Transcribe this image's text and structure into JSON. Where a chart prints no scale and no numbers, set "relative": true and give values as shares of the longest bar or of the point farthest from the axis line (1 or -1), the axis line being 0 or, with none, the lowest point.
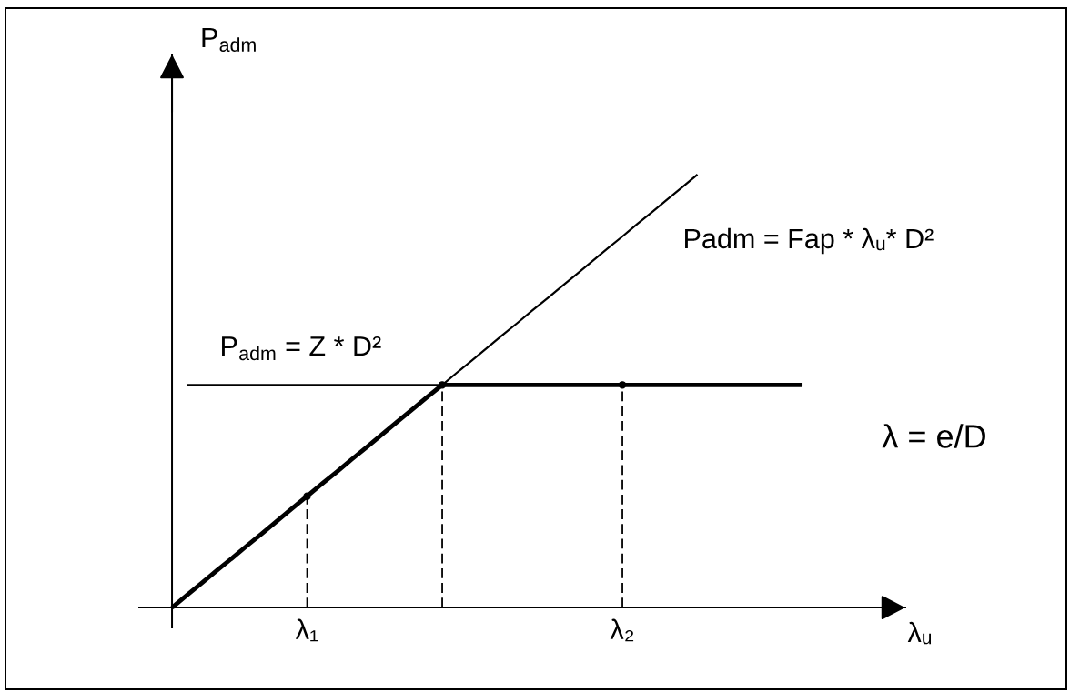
{
  "chart_data": {
    "type": "line",
    "relative": true,
    "xlabel": "λᵤ",
    "ylabel": "P$_{adm}$",
    "legend": false,
    "categories": [
      null,
      null,
      null,
      null,
      null,
      null,
      null,
      null,
      null,
      "λ₁",
      null,
      null,
      null,
      null,
      null,
      null,
      null,
      null,
      null,
      null,
      null,
      null,
      null,
      null,
      null,
      null,
      null,
      null,
      null,
      null,
      "λ₂",
      null,
      null,
      null,
      null,
      null,
      null,
      null,
      null,
      null,
      null,
      null,
      null
    ],
    "series": [
      {
        "name": "Padm = Fap * λᵤ* D²",
        "color": "#000000",
        "values": [
          null,
          null,
          null,
          null,
          null,
          null,
          null,
          null,
          null,
          null,
          null,
          null,
          null,
          null,
          null,
          null,
          null,
          null,
          0.514,
          0.543,
          0.571,
          0.6,
          0.629,
          0.657,
          0.686,
          0.714,
          0.743,
          0.771,
          0.8,
          0.829,
          0.857,
          0.886,
          0.914,
          0.943,
          0.971,
          1,
          null,
          null,
          null,
          null,
          null,
          null,
          null
        ]
      },
      {
        "name": "P$_{adm}$ = Z * D²",
        "color": "#000000",
        "values": [
          null,
          0.514,
          0.514,
          0.514,
          0.514,
          0.514,
          0.514,
          0.514,
          0.514,
          0.514,
          0.514,
          0.514,
          0.514,
          0.514,
          0.514,
          0.514,
          0.514,
          0.514,
          0.514,
          null,
          null,
          null,
          null,
          null,
          null,
          null,
          null,
          null,
          null,
          null,
          null,
          null,
          null,
          null,
          null,
          null,
          null,
          null,
          null,
          null,
          null,
          null,
          null
        ]
      },
      {
        "color": "#000000",
        "values": [
          0,
          0.029,
          0.057,
          0.086,
          0.114,
          0.143,
          0.171,
          0.2,
          0.229,
          0.257,
          0.286,
          0.314,
          0.343,
          0.371,
          0.4,
          0.429,
          0.457,
          0.486,
          0.514,
          0.514,
          0.514,
          0.514,
          0.514,
          0.514,
          0.514,
          0.514,
          0.514,
          0.514,
          0.514,
          0.514,
          0.514,
          0.514,
          0.514,
          0.514,
          0.514,
          0.514,
          0.514,
          0.514,
          0.514,
          0.514,
          0.514,
          0.514,
          0.514
        ]
      },
      {
        "type": "lollipop",
        "color": "#000000",
        "line_style": "dashed",
        "marker": "circle",
        "values": [
          null,
          null,
          null,
          null,
          null,
          null,
          null,
          null,
          null,
          0.257,
          null,
          null,
          null,
          null,
          null,
          null,
          null,
          null,
          0.514,
          null,
          null,
          null,
          null,
          null,
          null,
          null,
          null,
          null,
          null,
          null,
          0.514,
          null,
          null,
          null,
          null,
          null,
          null,
          null,
          null,
          null,
          null,
          null,
          null
        ]
      }
    ],
    "annotations": [
      "λ = e/D"
    ]
  }
}
